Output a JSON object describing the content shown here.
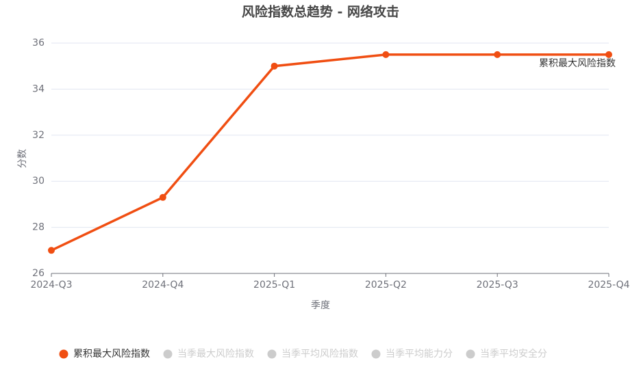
{
  "chart_data": {
    "type": "line",
    "title": "风险指数总趋势 - 网络攻击",
    "x_label": "季度",
    "y_label": "分数",
    "categories": [
      "2024-Q3",
      "2024-Q4",
      "2025-Q1",
      "2025-Q2",
      "2025-Q3",
      "2025-Q4"
    ],
    "series": [
      {
        "name": "累积最大风险指数",
        "color": "#f04e12",
        "hidden": false,
        "values": [
          27,
          29.3,
          35,
          35.5,
          35.5,
          35.5
        ]
      },
      {
        "name": "当季最大风险指数",
        "color": "#cccccc",
        "hidden": true,
        "values": [
          null,
          null,
          null,
          null,
          null,
          null
        ]
      },
      {
        "name": "当季平均风险指数",
        "color": "#cccccc",
        "hidden": true,
        "values": [
          null,
          null,
          null,
          null,
          null,
          null
        ]
      },
      {
        "name": "当季平均能力分",
        "color": "#cccccc",
        "hidden": true,
        "values": [
          null,
          null,
          null,
          null,
          null,
          null
        ]
      },
      {
        "name": "当季平均安全分",
        "color": "#cccccc",
        "hidden": true,
        "values": [
          null,
          null,
          null,
          null,
          null,
          null
        ]
      }
    ],
    "ylim": [
      26,
      36
    ],
    "yticks": [
      26,
      28,
      30,
      32,
      34,
      36
    ],
    "grid": true,
    "legend": "bottom"
  }
}
